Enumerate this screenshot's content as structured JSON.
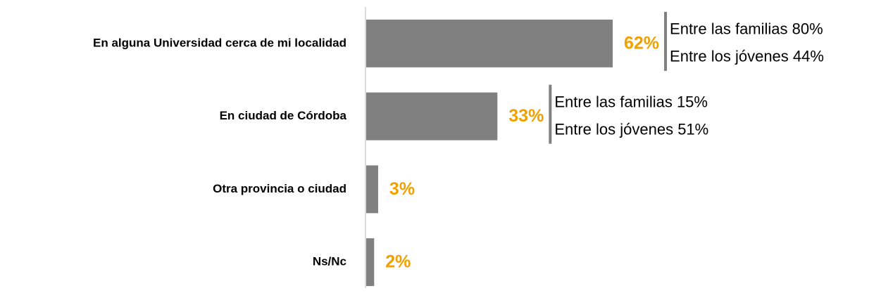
{
  "chart_data": {
    "type": "bar",
    "orientation": "horizontal",
    "categories": [
      "En alguna Universidad cerca de mi localidad",
      "En ciudad de Córdoba",
      "Otra provincia o ciudad",
      "Ns/Nc"
    ],
    "values": [
      62,
      33,
      3,
      2
    ],
    "value_labels": [
      "62%",
      "33%",
      "3%",
      "2%"
    ],
    "color": "#808080",
    "label_color": "#f0a000",
    "xlim": [
      0,
      100
    ],
    "annotations": [
      [
        "Entre las familias 80%",
        "Entre los jóvenes 44%"
      ],
      [
        "Entre las familias 15%",
        "Entre los jóvenes 51%"
      ]
    ]
  }
}
